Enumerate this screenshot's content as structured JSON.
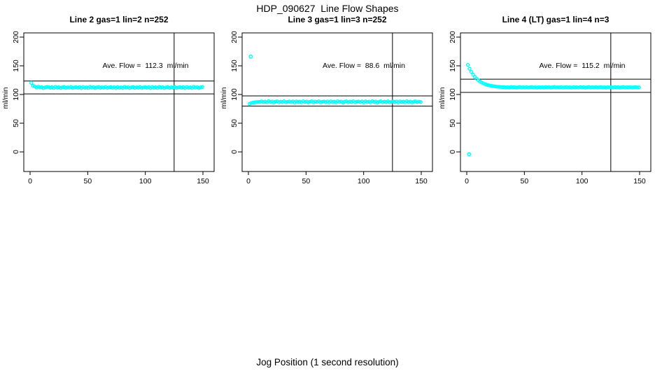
{
  "figure": {
    "title": "HDP_090627  Line Flow Shapes",
    "xlabel": "Jog Position (1 second resolution)",
    "colors": {
      "points": "#00FFFF",
      "lines": "#000000",
      "background": "#FFFFFF"
    }
  },
  "chart_data": [
    {
      "type": "scatter",
      "title": "Line 2 gas=1 lin=2 n=252",
      "annotation": "Ave. Flow =  112.3  ml/min",
      "ave_flow": 112.3,
      "ylabel": "ml/min",
      "xticks": [
        0,
        50,
        100,
        150
      ],
      "yticks": [
        0,
        50,
        100,
        150,
        200
      ],
      "xlim": [
        -5,
        160
      ],
      "ylim": [
        -35,
        207
      ],
      "hlines": [
        123.5,
        101.1
      ],
      "vline": 125,
      "x_start": 1,
      "x_step": 1.5,
      "y": [
        120.3,
        115.1,
        114.1,
        112.1,
        113.7,
        112.2,
        112.8,
        111.2,
        112.4,
        113.1,
        113.0,
        111.7,
        112.5,
        111.3,
        113.3,
        112.0,
        112.7,
        111.2,
        112.4,
        113.1,
        111.5,
        112.6,
        111.9,
        113.2,
        111.4,
        112.3,
        112.8,
        111.8,
        112.9,
        111.1,
        113.0,
        111.7,
        112.5,
        111.3,
        113.3,
        112.0,
        112.7,
        111.2,
        112.4,
        113.1,
        111.5,
        112.6,
        111.9,
        113.2,
        111.4,
        112.3,
        112.8,
        111.8,
        112.9,
        111.1,
        113.0,
        111.7,
        112.5,
        111.3,
        113.3,
        112.0,
        112.7,
        111.2,
        112.4,
        113.1,
        111.5,
        112.6,
        111.9,
        113.2,
        111.4,
        112.3,
        112.8,
        111.8,
        112.9,
        111.1,
        113.0,
        111.7,
        112.5,
        111.3,
        113.3,
        112.0,
        112.7,
        111.2,
        112.4,
        113.1,
        111.5,
        112.6,
        111.9,
        113.2,
        111.4,
        112.3,
        112.8,
        111.8,
        112.9,
        111.1,
        113.0,
        111.7,
        112.5,
        111.3,
        113.3,
        112.0,
        112.7,
        111.2,
        112.4,
        113.1
      ],
      "outliers": []
    },
    {
      "type": "scatter",
      "title": "Line 3 gas=1 lin=3 n=252",
      "annotation": "Ave. Flow =  88.6  ml/min",
      "ave_flow": 88.6,
      "ylabel": "ml/min",
      "xticks": [
        0,
        50,
        100,
        150
      ],
      "yticks": [
        0,
        50,
        100,
        150,
        200
      ],
      "xlim": [
        -5,
        160
      ],
      "ylim": [
        -35,
        207
      ],
      "hlines": [
        97.5,
        79.7
      ],
      "vline": 125,
      "x_start": 1,
      "x_step": 1.5,
      "y": [
        83.7,
        85.1,
        85.9,
        86.5,
        86.8,
        87.0,
        87.1,
        88.0,
        86.8,
        87.5,
        86.4,
        88.3,
        87.0,
        87.7,
        86.2,
        87.4,
        88.1,
        86.5,
        87.6,
        86.9,
        88.2,
        86.4,
        87.3,
        87.8,
        86.8,
        87.9,
        86.1,
        88.0,
        86.8,
        87.5,
        86.4,
        88.3,
        87.0,
        87.7,
        86.2,
        87.4,
        88.1,
        86.5,
        87.6,
        86.9,
        88.2,
        86.4,
        87.3,
        87.8,
        86.8,
        87.9,
        86.1,
        88.0,
        86.8,
        87.5,
        86.4,
        88.3,
        87.0,
        87.7,
        86.2,
        87.4,
        88.1,
        86.5,
        87.6,
        86.9,
        88.2,
        86.4,
        87.3,
        87.8,
        86.8,
        87.9,
        86.1,
        88.0,
        86.8,
        87.5,
        86.4,
        88.3,
        87.0,
        87.7,
        86.2,
        87.4,
        88.1,
        86.5,
        87.6,
        86.9,
        88.2,
        86.4,
        87.3,
        87.8,
        86.8,
        87.9,
        86.1,
        88.0,
        86.8,
        87.5,
        86.4,
        88.3,
        87.0,
        87.7,
        86.2,
        87.4,
        88.1,
        86.5,
        87.6,
        86.9
      ],
      "outliers": [
        {
          "x": 2,
          "y": 166
        }
      ]
    },
    {
      "type": "scatter",
      "title": "Line 4 (LT) gas=1 lin=4 n=3",
      "annotation": "Ave. Flow =  115.2  ml/min",
      "ave_flow": 115.2,
      "ylabel": "ml/min",
      "xticks": [
        0,
        50,
        100,
        150
      ],
      "yticks": [
        0,
        50,
        100,
        150,
        200
      ],
      "xlim": [
        -5,
        160
      ],
      "ylim": [
        -35,
        207
      ],
      "hlines": [
        126.7,
        103.7
      ],
      "vline": 125,
      "x_start": 1,
      "x_step": 1.5,
      "y": [
        151.7,
        144.9,
        139.4,
        134.6,
        130.8,
        127.6,
        124.9,
        122.7,
        120.9,
        119.3,
        118.1,
        117.0,
        116.2,
        115.5,
        114.9,
        114.4,
        114.0,
        113.6,
        113.4,
        113.1,
        112.9,
        112.9,
        112.3,
        112.7,
        112.1,
        113.0,
        112.4,
        112.8,
        112.0,
        112.6,
        113.1,
        112.2,
        112.7,
        112.3,
        112.9,
        112.1,
        112.6,
        112.8,
        112.2,
        112.5,
        112.0,
        112.9,
        112.3,
        112.7,
        112.1,
        113.0,
        112.4,
        112.8,
        112.0,
        112.6,
        113.1,
        112.2,
        112.7,
        112.3,
        112.9,
        112.1,
        112.6,
        112.8,
        112.2,
        112.5,
        112.0,
        112.9,
        112.3,
        112.7,
        112.1,
        113.0,
        112.4,
        112.8,
        112.0,
        112.6,
        113.1,
        112.2,
        112.7,
        112.3,
        112.9,
        112.1,
        112.6,
        112.8,
        112.2,
        112.5,
        112.0,
        112.9,
        112.3,
        112.7,
        112.1,
        113.0,
        112.4,
        112.8,
        112.0,
        112.6,
        113.1,
        112.2,
        112.7,
        112.3,
        112.9,
        112.1,
        112.6,
        112.8,
        112.2,
        112.5
      ],
      "outliers": [
        {
          "x": 2,
          "y": -4
        }
      ]
    }
  ]
}
